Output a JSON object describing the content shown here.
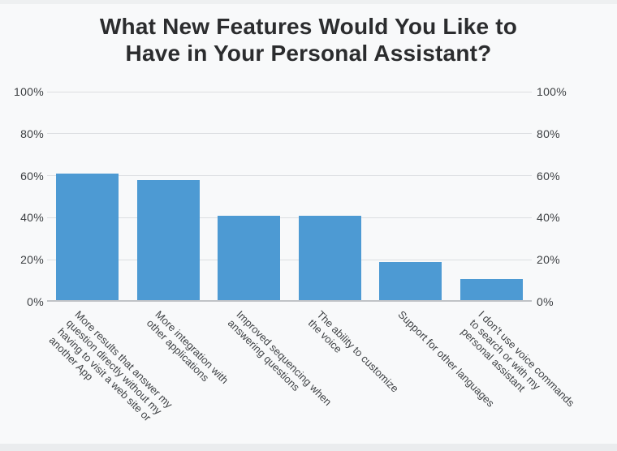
{
  "page": {
    "background": "#f8f9fa"
  },
  "chart_data": {
    "type": "bar",
    "title": "What New Features Would You Like to\nHave in Your Personal Assistant?",
    "categories": [
      "More results that answer my question directly without my having to visit a web site or another App",
      "More integration with other applications",
      "Improved sequencing when answering questions",
      "The ability to customize the voice",
      "Support for other languages",
      "I don't use voice commands to search or with my personal assistant"
    ],
    "category_display_lines": [
      [
        "More results that answer my",
        "question directly without my",
        "having to visit a web site or",
        "another App"
      ],
      [
        "More integration with",
        "other applications"
      ],
      [
        "Improved sequencing when",
        "answering questions"
      ],
      [
        "The ability to customize",
        "the voice"
      ],
      [
        "Support for other languages"
      ],
      [
        "I don't use voice commands",
        "to search or with my",
        "personal assistant"
      ]
    ],
    "values": [
      61,
      58,
      41,
      41,
      19,
      11
    ],
    "unit": "%",
    "xlabel": "",
    "ylabel": "",
    "ylim": [
      0,
      100
    ],
    "yticks": [
      0,
      20,
      40,
      60,
      80,
      100
    ],
    "ytick_labels": [
      "0%",
      "20%",
      "40%",
      "60%",
      "80%",
      "100%"
    ],
    "y_axis_sides": "both",
    "grid": true,
    "legend": "none",
    "bar_color": "#4d9ad3",
    "x_label_rotation_deg": 45
  }
}
